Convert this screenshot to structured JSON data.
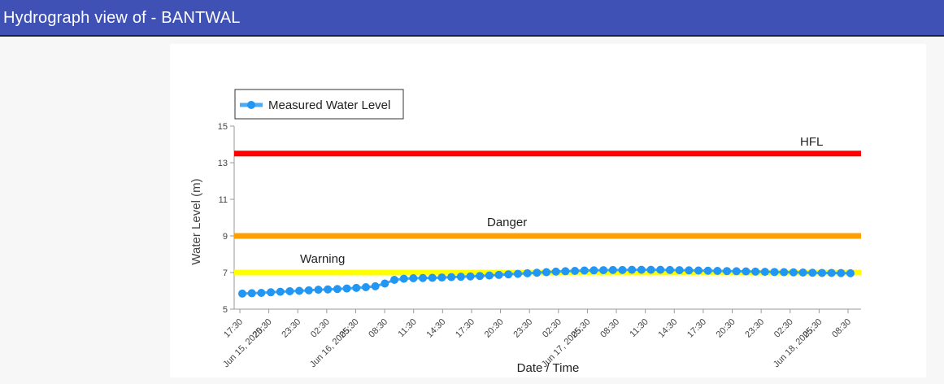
{
  "header": {
    "title": "Hydrograph view of - BANTWAL"
  },
  "colors": {
    "header_bg": "#3f51b5",
    "series": "#2196f3",
    "hfl": "#ff0000",
    "danger": "#ffa000",
    "warning": "#ffff00"
  },
  "chart_data": {
    "type": "line",
    "title": "",
    "xlabel": "Date / Time",
    "ylabel": "Water Level (m)",
    "ylim": [
      5,
      15
    ],
    "yticks": [
      5,
      7,
      9,
      11,
      13,
      15
    ],
    "legend": {
      "position": "top-left",
      "entries": [
        "Measured Water Level"
      ]
    },
    "x_tick_labels": [
      "17:30",
      "Jun 15, 2025, 20:30",
      "23:30",
      "02:30",
      "Jun 16, 2025, 05:30",
      "08:30",
      "11:30",
      "14:30",
      "17:30",
      "20:30",
      "23:30",
      "02:30",
      "Jun 17, 2025, 05:30",
      "08:30",
      "11:30",
      "14:30",
      "17:30",
      "20:30",
      "23:30",
      "02:30",
      "Jun 18, 2025, 05:30",
      "08:30"
    ],
    "thresholds": [
      {
        "name": "HFL",
        "value": 13.5
      },
      {
        "name": "Danger",
        "value": 9.0
      },
      {
        "name": "Warning",
        "value": 7.0
      }
    ],
    "series": [
      {
        "name": "Measured Water Level",
        "values": [
          5.85,
          5.87,
          5.89,
          5.92,
          5.95,
          5.98,
          6.0,
          6.03,
          6.06,
          6.08,
          6.1,
          6.13,
          6.16,
          6.2,
          6.25,
          6.4,
          6.6,
          6.66,
          6.69,
          6.7,
          6.71,
          6.73,
          6.75,
          6.77,
          6.79,
          6.81,
          6.84,
          6.87,
          6.9,
          6.93,
          6.96,
          6.99,
          7.02,
          7.05,
          7.07,
          7.09,
          7.11,
          7.12,
          7.13,
          7.14,
          7.14,
          7.15,
          7.15,
          7.15,
          7.15,
          7.14,
          7.13,
          7.12,
          7.11,
          7.1,
          7.09,
          7.08,
          7.07,
          7.06,
          7.05,
          7.04,
          7.03,
          7.02,
          7.01,
          7.0,
          6.99,
          6.98,
          6.98,
          6.97,
          6.96
        ]
      }
    ]
  }
}
